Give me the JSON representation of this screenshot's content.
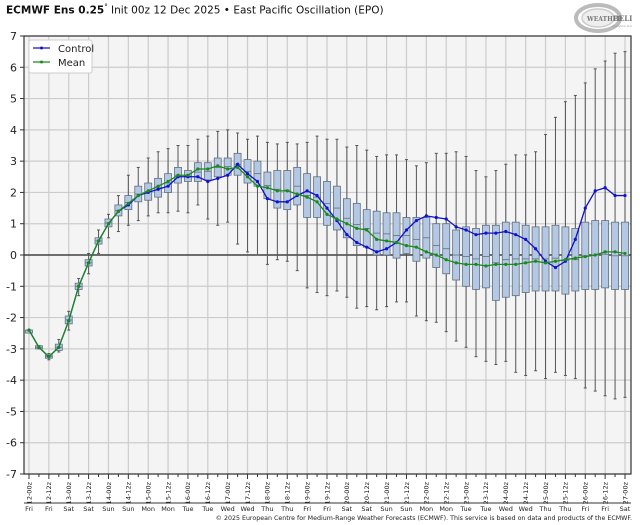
{
  "header": {
    "title_bold": "ECMWF Ens 0.25",
    "degree": "°",
    "title_rest": " Init 00z 12 Dec 2025 • East Pacific Oscillation (EPO)",
    "logo_text": "WeatherBELL",
    "logo_sub": "Analytics LLC"
  },
  "footer": {
    "copyright": "© 2025 European Centre for Medium-Range Weather Forecasts (ECMWF). This service is based on data and products of the ECMWF."
  },
  "colors": {
    "control": "#1010d0",
    "mean": "#1a8a1a",
    "box_fill": "#b4c8e4",
    "box_edge": "#607080",
    "whisker": "#555555",
    "grid": "#cccccc",
    "plot_bg": "#f4f4f4",
    "zero_line": "#444444"
  },
  "chart_data": {
    "type": "box-line",
    "title": "ECMWF Ens 0.25° Init 00z 12 Dec 2025 • East Pacific Oscillation (EPO)",
    "xlabel": "",
    "ylabel": "",
    "ylim": [
      -7,
      7
    ],
    "yticks": [
      7,
      6,
      5,
      4,
      3,
      2,
      1,
      0,
      -1,
      -2,
      -3,
      -4,
      -5,
      -6,
      -7
    ],
    "grid": true,
    "legend": {
      "position": "upper left",
      "entries": [
        "Control",
        "Mean"
      ]
    },
    "x_tick_labels": [
      "12-00z",
      "12-12z",
      "13-00z",
      "13-12z",
      "14-00z",
      "14-12z",
      "15-00z",
      "15-12z",
      "16-00z",
      "16-12z",
      "17-00z",
      "17-12z",
      "18-00z",
      "18-12z",
      "19-00z",
      "19-12z",
      "20-00z",
      "20-12z",
      "21-00z",
      "21-12z",
      "22-00z",
      "22-12z",
      "23-00z",
      "23-12z",
      "24-00z",
      "24-12z",
      "25-00z",
      "25-12z",
      "26-00z",
      "26-12z",
      "27-00z"
    ],
    "x_day_labels": [
      "Fri",
      "Fri",
      "Sat",
      "Sat",
      "Sun",
      "Sun",
      "Mon",
      "Mon",
      "Tue",
      "Tue",
      "Wed",
      "Wed",
      "Thu",
      "Thu",
      "Fri",
      "Fri",
      "Sat",
      "Sat",
      "Sun",
      "Sun",
      "Mon",
      "Mon",
      "Tue",
      "Tue",
      "Wed",
      "Wed",
      "Thu",
      "Thu",
      "Fri",
      "Fri",
      "Sat"
    ],
    "step_hours": 6,
    "series": [
      {
        "name": "Control",
        "values": [
          -2.4,
          -2.95,
          -3.25,
          -2.95,
          -2.1,
          -1.0,
          -0.25,
          0.45,
          1.0,
          1.4,
          1.6,
          1.9,
          2.0,
          2.1,
          2.2,
          2.5,
          2.5,
          2.5,
          2.35,
          2.45,
          2.55,
          2.9,
          2.6,
          2.35,
          1.8,
          1.7,
          1.7,
          1.9,
          2.05,
          1.9,
          1.5,
          1.1,
          0.65,
          0.4,
          0.25,
          0.1,
          0.2,
          0.4,
          0.8,
          1.1,
          1.25,
          1.2,
          1.15,
          0.9,
          0.8,
          0.65,
          0.7,
          0.7,
          0.75,
          0.65,
          0.5,
          0.2,
          -0.2,
          -0.4,
          -0.2,
          0.5,
          1.5,
          2.05,
          2.15,
          1.9,
          1.9
        ]
      },
      {
        "name": "Mean",
        "values": [
          -2.4,
          -2.95,
          -3.25,
          -2.95,
          -2.1,
          -1.0,
          -0.25,
          0.45,
          1.0,
          1.4,
          1.65,
          1.9,
          2.05,
          2.2,
          2.35,
          2.55,
          2.55,
          2.75,
          2.75,
          2.85,
          2.75,
          2.8,
          2.5,
          2.2,
          2.15,
          2.05,
          2.05,
          1.95,
          1.85,
          1.7,
          1.3,
          1.15,
          1.0,
          0.85,
          0.8,
          0.5,
          0.45,
          0.4,
          0.3,
          0.25,
          0.1,
          0.0,
          -0.15,
          -0.25,
          -0.3,
          -0.3,
          -0.35,
          -0.3,
          -0.3,
          -0.3,
          -0.25,
          -0.2,
          -0.25,
          -0.2,
          -0.15,
          -0.1,
          -0.05,
          0.0,
          0.1,
          0.1,
          0.05
        ]
      },
      {
        "name": "Q3",
        "values": [
          -2.4,
          -2.9,
          -3.2,
          -2.85,
          -1.95,
          -0.9,
          -0.15,
          0.55,
          1.15,
          1.6,
          1.9,
          2.2,
          2.3,
          2.45,
          2.6,
          2.8,
          2.7,
          2.95,
          2.95,
          3.1,
          3.1,
          3.25,
          3.05,
          3.0,
          2.65,
          2.7,
          2.7,
          2.8,
          2.6,
          2.5,
          2.35,
          2.2,
          1.8,
          1.65,
          1.45,
          1.4,
          1.35,
          1.35,
          1.2,
          1.2,
          1.2,
          1.0,
          1.0,
          0.8,
          0.9,
          0.85,
          0.95,
          0.95,
          1.05,
          1.05,
          0.95,
          0.9,
          0.9,
          0.95,
          0.9,
          0.85,
          1.05,
          1.1,
          1.1,
          1.05,
          1.05
        ]
      },
      {
        "name": "Q1",
        "values": [
          -2.4,
          -3.0,
          -3.3,
          -3.05,
          -2.2,
          -1.1,
          -0.35,
          0.35,
          0.9,
          1.25,
          1.45,
          1.7,
          1.75,
          1.85,
          2.0,
          2.3,
          2.35,
          2.35,
          2.4,
          2.5,
          2.55,
          2.55,
          2.3,
          2.2,
          1.8,
          1.5,
          1.45,
          1.6,
          1.2,
          1.2,
          0.95,
          0.8,
          0.55,
          0.3,
          0.25,
          0.0,
          0.0,
          -0.1,
          0.05,
          -0.2,
          -0.1,
          -0.4,
          -0.6,
          -0.8,
          -1.0,
          -1.1,
          -1.05,
          -1.45,
          -1.35,
          -1.3,
          -1.2,
          -1.15,
          -1.15,
          -1.15,
          -1.25,
          -1.15,
          -1.1,
          -1.1,
          -1.05,
          -1.1,
          -1.1
        ]
      },
      {
        "name": "Max",
        "values": [
          -2.4,
          -2.9,
          -3.15,
          -2.7,
          -1.8,
          -0.75,
          0.05,
          0.8,
          1.3,
          1.9,
          2.55,
          2.8,
          3.1,
          3.3,
          3.4,
          3.5,
          3.5,
          3.7,
          3.8,
          3.95,
          4.0,
          3.9,
          3.7,
          3.8,
          3.6,
          3.55,
          3.6,
          3.55,
          3.6,
          3.8,
          3.7,
          3.7,
          3.45,
          3.5,
          3.35,
          3.15,
          3.2,
          3.2,
          3.05,
          2.85,
          2.95,
          3.25,
          3.25,
          3.3,
          3.15,
          2.7,
          2.5,
          2.7,
          2.9,
          3.2,
          3.2,
          3.3,
          3.85,
          4.4,
          4.9,
          5.1,
          5.5,
          5.95,
          6.2,
          6.45,
          6.5
        ]
      },
      {
        "name": "Min",
        "values": [
          -2.4,
          -3.0,
          -3.35,
          -3.1,
          -2.4,
          -1.3,
          -0.6,
          0.05,
          0.55,
          0.75,
          0.95,
          1.1,
          1.25,
          1.35,
          1.35,
          1.4,
          1.35,
          1.6,
          1.15,
          0.95,
          1.05,
          0.35,
          0.1,
          0.0,
          -0.3,
          -0.15,
          -0.2,
          -0.5,
          -1.05,
          -1.2,
          -1.3,
          -1.15,
          -1.35,
          -1.7,
          -1.65,
          -1.75,
          -1.65,
          -1.5,
          -1.5,
          -1.95,
          -2.1,
          -2.15,
          -2.45,
          -2.75,
          -2.95,
          -3.25,
          -3.4,
          -3.5,
          -3.4,
          -3.75,
          -3.85,
          -3.7,
          -3.95,
          -3.75,
          -3.85,
          -3.95,
          -4.25,
          -4.35,
          -4.5,
          -4.6,
          -4.55
        ]
      }
    ]
  }
}
